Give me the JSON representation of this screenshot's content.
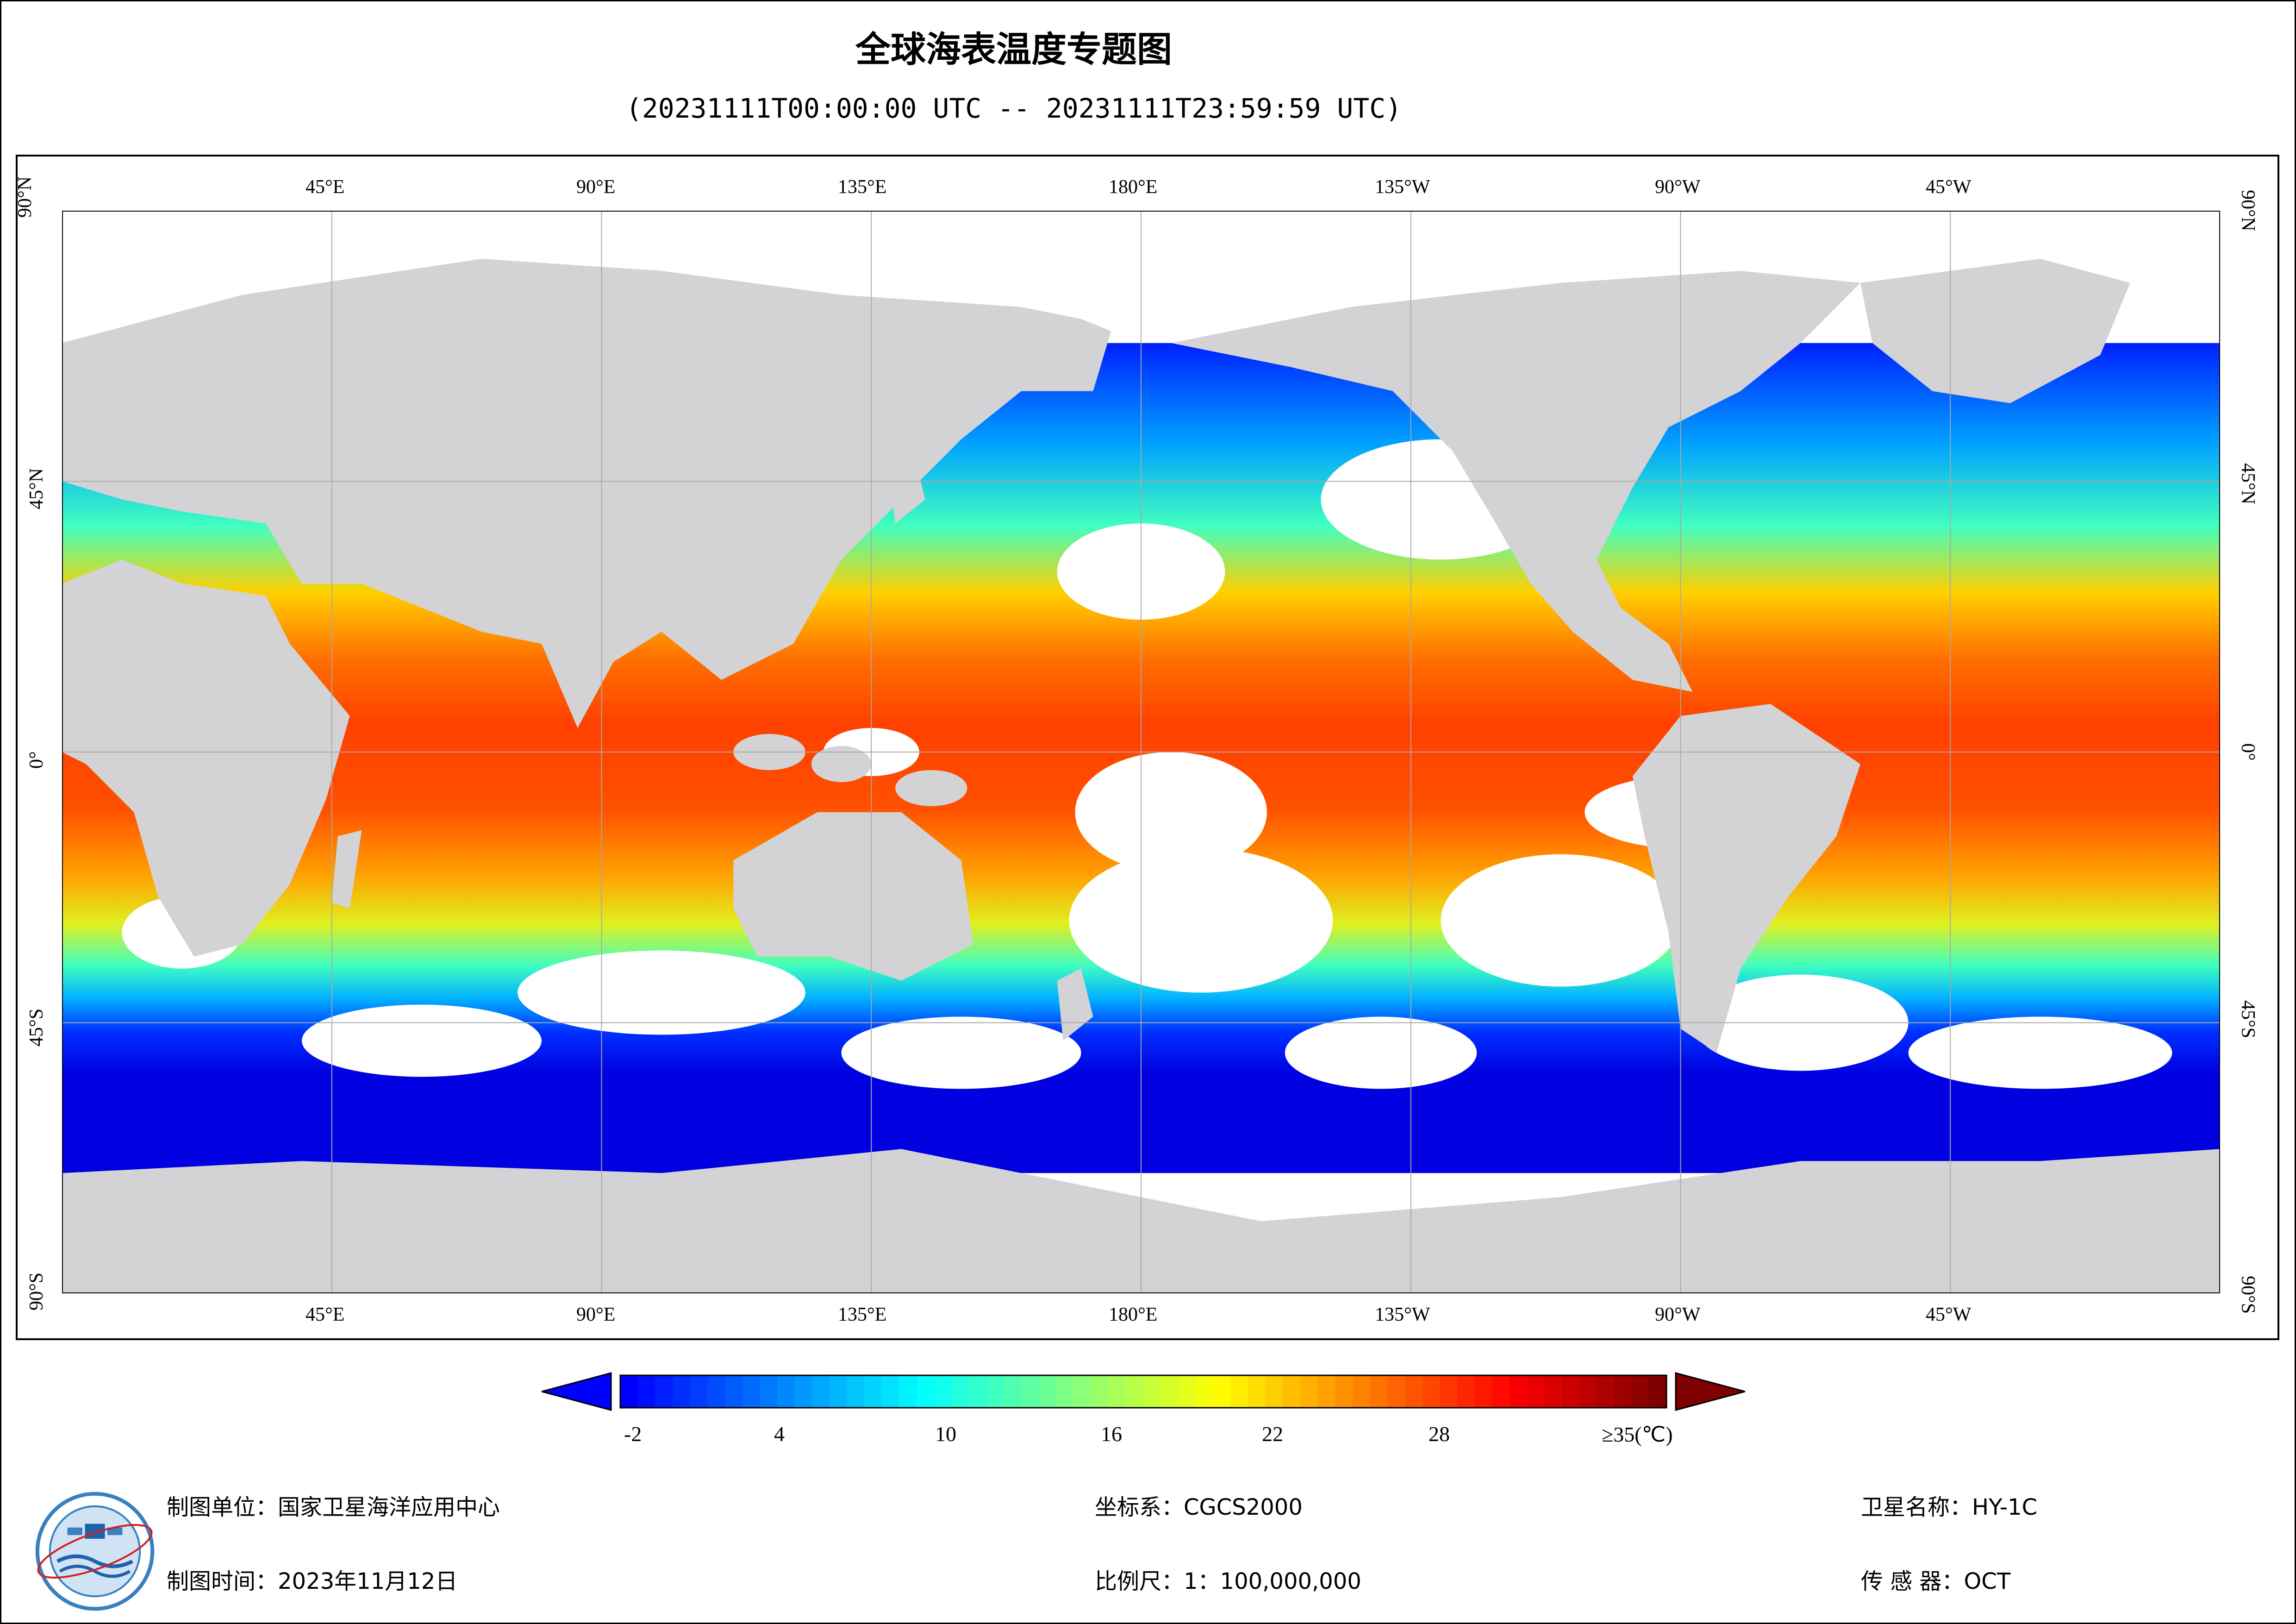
{
  "title": "全球海表温度专题图",
  "subtitle": "(20231111T00:00:00 UTC -- 20231111T23:59:59 UTC)",
  "lon_labels": [
    "45°E",
    "90°E",
    "135°E",
    "180°E",
    "135°W",
    "90°W",
    "45°W"
  ],
  "lat_labels": [
    "90°N",
    "45°N",
    "0°",
    "45°S",
    "90°S"
  ],
  "colorbar": {
    "ticks": [
      "-2",
      "4",
      "10",
      "16",
      "22",
      "28",
      "≥35(℃)"
    ],
    "colors": [
      "#0000ff",
      "#0040ff",
      "#0080ff",
      "#00c0ff",
      "#00ffff",
      "#40ffc0",
      "#80ff80",
      "#c0ff40",
      "#ffff00",
      "#ffc000",
      "#ff8000",
      "#ff4000",
      "#ff0000",
      "#c00000",
      "#800000"
    ],
    "under_color": "#0000ff",
    "over_color": "#7f0000"
  },
  "colors": {
    "land": "#d3d3d5",
    "no_data": "#ffffff",
    "grid": "#a9a9a9"
  },
  "footer": {
    "org": "制图单位：国家卫星海洋应用中心",
    "date": "制图时间：2023年11月12日",
    "crs": "坐标系：CGCS2000",
    "scale": "比例尺：1：100,000,000",
    "satellite": "卫星名称：HY-1C",
    "sensor": "传 感 器：OCT"
  },
  "logo": {
    "icon": "nsoas-logo-icon"
  }
}
